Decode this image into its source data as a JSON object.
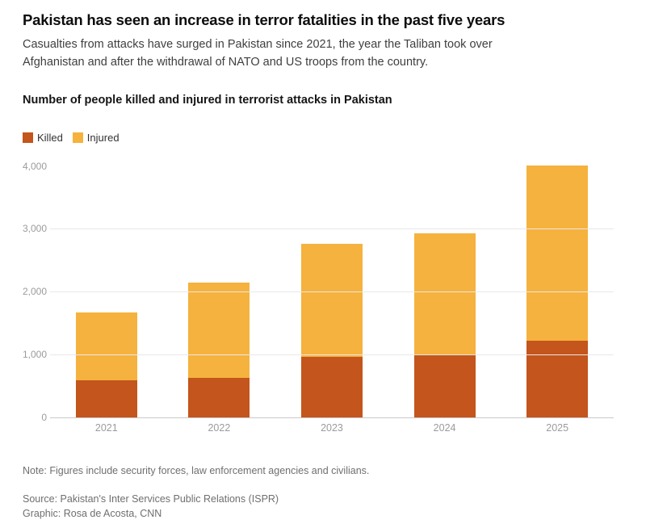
{
  "header": {
    "title": "Pakistan has seen an increase in terror fatalities in the past five years",
    "subtitle": "Casualties from attacks have surged in Pakistan since 2021, the year the Taliban took over Afghanistan and after the withdrawal of NATO and US troops from the country."
  },
  "chart_heading": "Number of people killed and injured in terrorist attacks in Pakistan",
  "chart_data": {
    "type": "bar",
    "stacked": true,
    "title": "Number of people killed and injured in terrorist attacks in Pakistan",
    "categories": [
      "2021",
      "2022",
      "2023",
      "2024",
      "2025"
    ],
    "series": [
      {
        "name": "Killed",
        "color": "#c4551c",
        "values": [
          580,
          630,
          960,
          990,
          1210
        ]
      },
      {
        "name": "Injured",
        "color": "#f5b23e",
        "values": [
          1090,
          1510,
          1800,
          1930,
          2800
        ]
      }
    ],
    "totals": [
      1670,
      2140,
      2760,
      2920,
      4010
    ],
    "xlabel": "",
    "ylabel": "",
    "ylim": [
      0,
      4000
    ],
    "yticks": [
      {
        "value": 0,
        "label": "0"
      },
      {
        "value": 1000,
        "label": "1,000"
      },
      {
        "value": 2000,
        "label": "2,000"
      },
      {
        "value": 3000,
        "label": "3,000"
      },
      {
        "value": 4000,
        "label": "4,000"
      }
    ],
    "grid": true,
    "legend_position": "top-left",
    "colors": {
      "gridline": "#e8e8e8",
      "baseline": "#c9c9c9",
      "axis_text": "#9b9b9b"
    }
  },
  "footer": {
    "note": "Note: Figures include security forces, law enforcement agencies and civilians.",
    "source": "Source: Pakistan's Inter Services Public Relations (ISPR)",
    "credit": "Graphic: Rosa de Acosta, CNN"
  }
}
